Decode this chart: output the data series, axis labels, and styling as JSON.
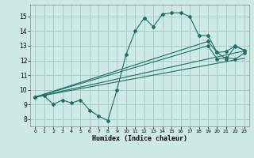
{
  "title": "",
  "xlabel": "Humidex (Indice chaleur)",
  "ylabel": "",
  "bg_color": "#ceeae6",
  "grid_color": "#aaccca",
  "line_color": "#1e6e64",
  "xlim": [
    -0.5,
    23.5
  ],
  "ylim": [
    7.5,
    15.8
  ],
  "yticks": [
    8,
    9,
    10,
    11,
    12,
    13,
    14,
    15
  ],
  "xticks": [
    0,
    1,
    2,
    3,
    4,
    5,
    6,
    7,
    8,
    9,
    10,
    11,
    12,
    13,
    14,
    15,
    16,
    17,
    18,
    19,
    20,
    21,
    22,
    23
  ],
  "line1_x": [
    0,
    1,
    2,
    3,
    4,
    5,
    6,
    7,
    8,
    9,
    10,
    11,
    12,
    13,
    14,
    15,
    16,
    17,
    18,
    19,
    20,
    21,
    22,
    23
  ],
  "line1_y": [
    9.5,
    9.6,
    9.0,
    9.3,
    9.1,
    9.3,
    8.6,
    8.2,
    7.9,
    10.0,
    12.4,
    14.0,
    14.9,
    14.3,
    15.15,
    15.25,
    15.25,
    15.0,
    13.7,
    13.7,
    12.55,
    12.1,
    12.95,
    12.7
  ],
  "line2_x": [
    0,
    19,
    20,
    21,
    22,
    23
  ],
  "line2_y": [
    9.5,
    13.3,
    12.55,
    12.6,
    13.0,
    12.7
  ],
  "line3_x": [
    0,
    19,
    20,
    21,
    22,
    23
  ],
  "line3_y": [
    9.5,
    13.0,
    12.1,
    12.2,
    12.1,
    12.5
  ]
}
